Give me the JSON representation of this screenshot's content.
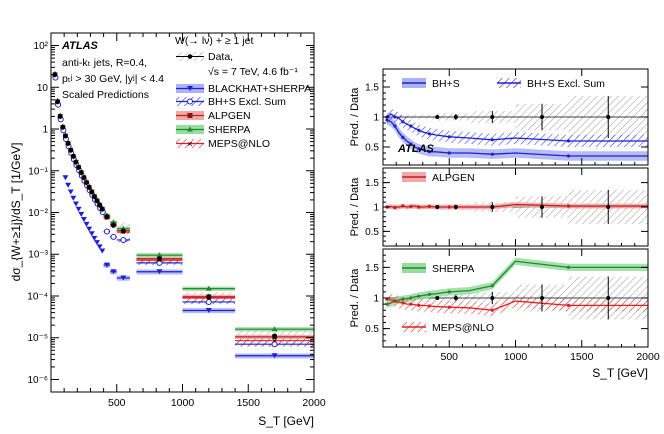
{
  "colors": {
    "bhs": "#1f1fd6",
    "bhs_band": "#aab2f0",
    "alpgen": "#c81e1e",
    "alpgen_band": "#f0a8a8",
    "sherpa": "#1f8a2e",
    "sherpa_band": "#98dca0",
    "meps": "#e02020",
    "data": "#000000",
    "hatch": "#999999"
  },
  "chart_data": [
    {
      "type": "scatter",
      "panel": "spectrum",
      "xlabel": "S_T [GeV]",
      "ylabel": "dσ_{W+≥1j}/dS_T [1/GeV]",
      "xlim": [
        0,
        2000
      ],
      "ylim_log10": [
        -6.3,
        2.3
      ],
      "x_ticks": [
        "500",
        "1000",
        "1500",
        "2000"
      ],
      "x_tick_values": [
        500,
        1000,
        1500,
        2000
      ],
      "y_ticks": [
        "10⁻⁶",
        "10⁻⁵",
        "10⁻⁴",
        "10⁻³",
        "10⁻²",
        "10⁻¹",
        "1",
        "10",
        "10²"
      ],
      "y_tick_exponents": [
        -6,
        -5,
        -4,
        -3,
        -2,
        -1,
        0,
        1,
        2
      ],
      "annotations": {
        "atlas": "ATLAS",
        "jets": "anti-kₜ jets, R=0.4,",
        "cuts": "pₜʲ > 30 GeV, |yʲ| < 4.4",
        "scaled": "Scaled Predictions"
      },
      "legend": {
        "title": "W(→ lν) + ≥ 1 jet",
        "data": "Data,",
        "data_sub": "√s = 7 TeV, 4.6 fb⁻¹",
        "entries": [
          "BLACKHAT+SHERPA",
          "BH+S Excl. Sum",
          "ALPGEN",
          "SHERPA",
          "MEPS@NLO"
        ]
      },
      "data_points": {
        "x": [
          30,
          50,
          70,
          90,
          110,
          130,
          150,
          170,
          190,
          210,
          230,
          250,
          270,
          290,
          310,
          330,
          350,
          370,
          390,
          425,
          475,
          550,
          825,
          1200,
          1700
        ],
        "y": [
          20,
          4.5,
          2.0,
          1.1,
          0.68,
          0.45,
          0.31,
          0.22,
          0.16,
          0.12,
          0.09,
          0.068,
          0.052,
          0.04,
          0.031,
          0.024,
          0.019,
          0.015,
          0.012,
          0.008,
          0.005,
          0.0036,
          0.00078,
          9.5e-05,
          1.1e-05
        ]
      },
      "series": [
        {
          "name": "BLACKHAT+SHERPA",
          "scale": 0.1,
          "bins": [
            [
              400,
              450
            ],
            [
              450,
              500
            ],
            [
              500,
              600
            ],
            [
              650,
              1000
            ],
            [
              1000,
              1400
            ],
            [
              1400,
              2000
            ]
          ],
          "values": [
            0.00055,
            0.00038,
            0.00027,
            0.00038,
            4.5e-05,
            3.7e-06
          ]
        },
        {
          "name": "BH+S Excl. Sum",
          "scale": 1.0,
          "bins": [
            [
              400,
              450
            ],
            [
              450,
              500
            ],
            [
              500,
              600
            ],
            [
              650,
              1000
            ],
            [
              1000,
              1400
            ],
            [
              1400,
              2000
            ]
          ],
          "values": [
            0.0035,
            0.0026,
            0.0022,
            0.00062,
            7.2e-05,
            7e-06
          ]
        },
        {
          "name": "ALPGEN",
          "scale": 1.0,
          "bins": [
            [
              400,
              450
            ],
            [
              450,
              500
            ],
            [
              500,
              600
            ],
            [
              650,
              1000
            ],
            [
              1000,
              1400
            ],
            [
              1400,
              2000
            ]
          ],
          "values": [
            0.0078,
            0.0052,
            0.0037,
            0.00078,
            9.6e-05,
            1.05e-05
          ]
        },
        {
          "name": "SHERPA",
          "scale": 1.0,
          "bins": [
            [
              400,
              450
            ],
            [
              450,
              500
            ],
            [
              500,
              600
            ],
            [
              650,
              1000
            ],
            [
              1000,
              1400
            ],
            [
              1400,
              2000
            ]
          ],
          "values": [
            0.0085,
            0.0058,
            0.0041,
            0.00095,
            0.00015,
            1.6e-05
          ]
        },
        {
          "name": "MEPS@NLO",
          "scale": 1.0,
          "bins": [
            [
              400,
              450
            ],
            [
              450,
              500
            ],
            [
              500,
              600
            ],
            [
              650,
              1000
            ],
            [
              1000,
              1400
            ],
            [
              1400,
              2000
            ]
          ],
          "values": [
            0.0075,
            0.0048,
            0.0034,
            0.00072,
            9e-05,
            8.5e-06
          ]
        }
      ]
    },
    {
      "type": "line",
      "panel": "ratio-bhs",
      "ylabel": "Pred. / Data",
      "xlim": [
        0,
        2000
      ],
      "ylim": [
        0.2,
        1.8
      ],
      "y_ticks": [
        "0.5",
        "1",
        "1.5"
      ],
      "y_tick_values": [
        0.5,
        1.0,
        1.5
      ],
      "atlas_label": "ATLAS",
      "legend": [
        "BH+S",
        "BH+S Excl. Sum"
      ],
      "series": [
        {
          "name": "BH+S",
          "x": [
            30,
            60,
            90,
            120,
            150,
            180,
            210,
            240,
            270,
            300,
            350,
            400,
            500,
            650,
            825,
            1000,
            1400,
            2000
          ],
          "y": [
            0.95,
            0.92,
            0.85,
            0.74,
            0.66,
            0.6,
            0.55,
            0.5,
            0.47,
            0.45,
            0.42,
            0.42,
            0.4,
            0.4,
            0.38,
            0.4,
            0.35,
            0.35
          ]
        },
        {
          "name": "BH+S Excl. Sum",
          "x": [
            30,
            60,
            90,
            120,
            150,
            180,
            210,
            240,
            270,
            300,
            350,
            400,
            500,
            650,
            825,
            1000,
            1400,
            2000
          ],
          "y": [
            1.0,
            1.05,
            1.0,
            0.98,
            0.92,
            0.88,
            0.85,
            0.81,
            0.78,
            0.75,
            0.72,
            0.7,
            0.67,
            0.65,
            0.62,
            0.65,
            0.6,
            0.6
          ]
        }
      ],
      "data_errors": {
        "x": [
          410,
          550,
          825,
          1200,
          1700
        ],
        "err": [
          0.03,
          0.05,
          0.1,
          0.22,
          0.35
        ]
      }
    },
    {
      "type": "line",
      "panel": "ratio-alpgen",
      "ylabel": "Pred. / Data",
      "xlim": [
        0,
        2000
      ],
      "ylim": [
        0.2,
        1.8
      ],
      "y_ticks": [
        "0.5",
        "1",
        "1.5"
      ],
      "y_tick_values": [
        0.5,
        1.0,
        1.5
      ],
      "legend": [
        "ALPGEN"
      ],
      "series": [
        {
          "name": "ALPGEN",
          "x": [
            30,
            60,
            90,
            120,
            150,
            180,
            210,
            240,
            270,
            300,
            350,
            400,
            500,
            650,
            825,
            1000,
            1400,
            2000
          ],
          "y": [
            1.0,
            1.01,
            0.99,
            1.0,
            1.02,
            1.0,
            1.01,
            1.02,
            1.0,
            1.0,
            1.01,
            1.0,
            1.0,
            1.0,
            1.0,
            1.05,
            1.02,
            1.02
          ]
        }
      ],
      "data_errors": {
        "x": [
          410,
          550,
          825,
          1200,
          1700
        ],
        "err": [
          0.03,
          0.05,
          0.1,
          0.22,
          0.35
        ]
      }
    },
    {
      "type": "line",
      "panel": "ratio-sherpa",
      "xlabel": "S_T [GeV]",
      "ylabel": "Pred. / Data",
      "xlim": [
        0,
        2000
      ],
      "ylim": [
        0.2,
        1.8
      ],
      "x_ticks": [
        "500",
        "1000",
        "1500",
        "2000"
      ],
      "x_tick_values": [
        500,
        1000,
        1500,
        2000
      ],
      "y_ticks": [
        "0.5",
        "1",
        "1.5"
      ],
      "y_tick_values": [
        0.5,
        1.0,
        1.5
      ],
      "legend": [
        "SHERPA",
        "MEPS@NLO"
      ],
      "series": [
        {
          "name": "SHERPA",
          "x": [
            30,
            60,
            90,
            120,
            150,
            180,
            210,
            240,
            270,
            300,
            350,
            400,
            500,
            650,
            825,
            1000,
            1400,
            2000
          ],
          "y": [
            0.9,
            0.92,
            0.95,
            0.97,
            0.98,
            0.99,
            1.0,
            1.02,
            1.03,
            1.04,
            1.06,
            1.07,
            1.1,
            1.12,
            1.2,
            1.6,
            1.5,
            1.5
          ]
        },
        {
          "name": "MEPS@NLO",
          "x": [
            30,
            60,
            90,
            120,
            150,
            180,
            210,
            240,
            270,
            300,
            350,
            400,
            500,
            650,
            825,
            1000,
            1400,
            2000
          ],
          "y": [
            0.98,
            0.97,
            0.95,
            0.93,
            0.92,
            0.9,
            0.9,
            0.89,
            0.88,
            0.88,
            0.87,
            0.86,
            0.85,
            0.84,
            0.8,
            0.95,
            0.88,
            0.88
          ]
        }
      ],
      "data_errors": {
        "x": [
          410,
          550,
          825,
          1200,
          1700
        ],
        "err": [
          0.03,
          0.05,
          0.1,
          0.22,
          0.35
        ]
      }
    }
  ]
}
